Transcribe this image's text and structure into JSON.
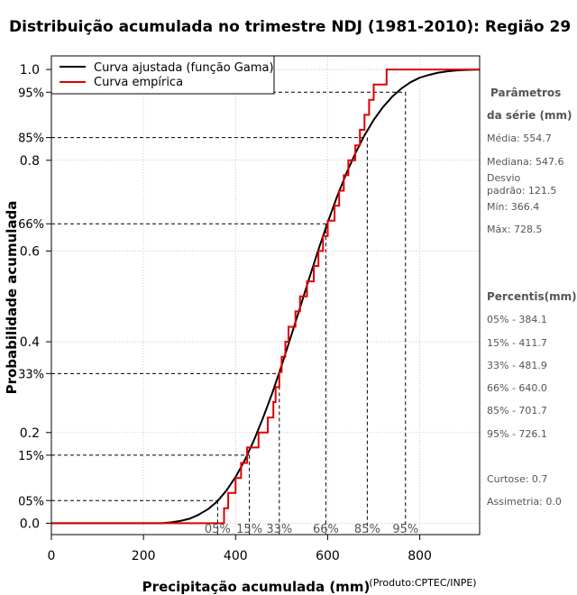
{
  "chart_data": {
    "type": "line",
    "title": "Distribuição acumulada no trimestre NDJ (1981-2010): Região 29",
    "xlabel": "Precipitação acumulada (mm)",
    "ylabel": "Probabilidade acumulada",
    "credit": "(Produto:CPTEC/INPE)",
    "xlim": [
      0,
      930
    ],
    "ylim": [
      -0.025,
      1.03
    ],
    "x_ticks": [
      0,
      200,
      400,
      600,
      800
    ],
    "y_ticks": [
      "0.0",
      "0.2",
      "0.4",
      "0.6",
      "0.8",
      "1.0"
    ],
    "y_pct_ticks": [
      {
        "label": "05%",
        "value": 0.05
      },
      {
        "label": "15%",
        "value": 0.15
      },
      {
        "label": "33%",
        "value": 0.33
      },
      {
        "label": "66%",
        "value": 0.66
      },
      {
        "label": "85%",
        "value": 0.85
      },
      {
        "label": "95%",
        "value": 0.95
      }
    ],
    "percentile_x": [
      {
        "label": "05%",
        "x": 361
      },
      {
        "label": "15%",
        "x": 430
      },
      {
        "label": "33%",
        "x": 495
      },
      {
        "label": "66%",
        "x": 596
      },
      {
        "label": "85%",
        "x": 686
      },
      {
        "label": "95%",
        "x": 769
      }
    ],
    "series": [
      {
        "name": "Curva ajustada (função Gama)",
        "color": "#000000",
        "x": [
          0,
          240,
          260,
          280,
          300,
          320,
          340,
          360,
          380,
          400,
          420,
          440,
          460,
          480,
          500,
          520,
          540,
          560,
          580,
          600,
          620,
          640,
          660,
          680,
          700,
          720,
          740,
          760,
          780,
          800,
          820,
          840,
          860,
          880,
          900,
          930
        ],
        "y": [
          0,
          0.0,
          0.002,
          0.005,
          0.01,
          0.019,
          0.031,
          0.048,
          0.072,
          0.102,
          0.139,
          0.183,
          0.233,
          0.288,
          0.348,
          0.411,
          0.475,
          0.54,
          0.603,
          0.663,
          0.719,
          0.77,
          0.815,
          0.855,
          0.889,
          0.917,
          0.94,
          0.958,
          0.972,
          0.982,
          0.988,
          0.993,
          0.996,
          0.998,
          0.999,
          1.0
        ]
      },
      {
        "name": "Curva empírica",
        "color": "#e00000",
        "x": [
          0,
          366,
          375,
          384,
          400,
          412,
          425,
          450,
          470,
          482,
          487,
          495,
          500,
          508,
          515,
          530,
          540,
          555,
          570,
          580,
          590,
          600,
          615,
          625,
          635,
          645,
          660,
          670,
          680,
          690,
          700,
          715,
          728,
          930
        ],
        "y": [
          0,
          0.0,
          0.033,
          0.067,
          0.1,
          0.133,
          0.167,
          0.2,
          0.233,
          0.267,
          0.3,
          0.333,
          0.367,
          0.4,
          0.433,
          0.467,
          0.5,
          0.533,
          0.567,
          0.6,
          0.633,
          0.667,
          0.7,
          0.733,
          0.767,
          0.8,
          0.833,
          0.867,
          0.9,
          0.933,
          0.967,
          0.967,
          1.0,
          1.0
        ]
      }
    ],
    "legend": "top-left"
  },
  "sidebar": {
    "params_title_line1": "Parâmetros",
    "params_title_line2": "da série (mm)",
    "media": "Média: 554.7",
    "mediana": "Mediana: 547.6",
    "desvio_line1": "Desvio",
    "desvio_line2": "padrão: 121.5",
    "min": "Mín: 366.4",
    "max": "Máx: 728.5",
    "percentis_title": "Percentis(mm)",
    "percentis": [
      "05% - 384.1",
      "15% - 411.7",
      "33% - 481.9",
      "66% - 640.0",
      "85% - 701.7",
      "95% - 726.1"
    ],
    "curtose": "Curtose: 0.7",
    "assimetria": "Assimetria: 0.0"
  }
}
